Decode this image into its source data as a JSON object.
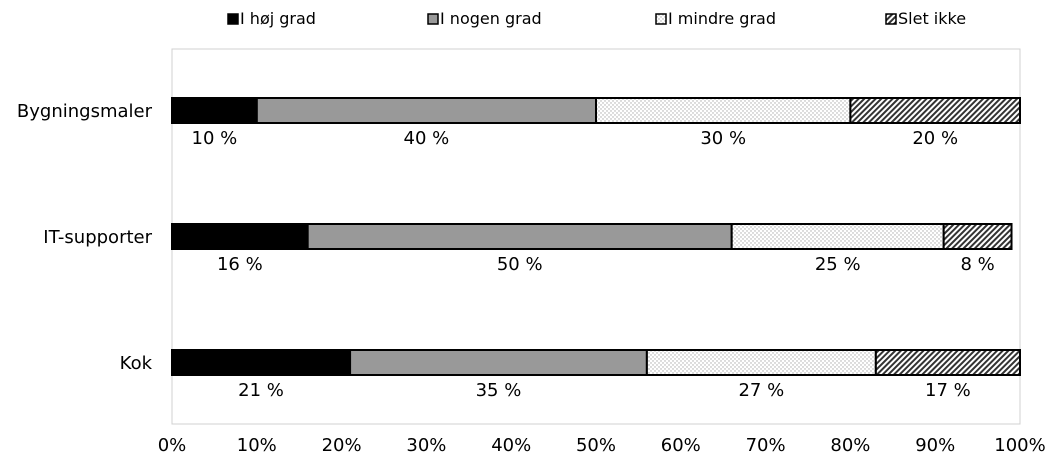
{
  "chart_data": {
    "type": "bar",
    "orientation": "horizontal",
    "stacked": true,
    "categories": [
      "Bygningsmaler",
      "IT-supporter",
      "Kok"
    ],
    "series": [
      {
        "name": "I høj grad",
        "values": [
          10,
          16,
          21
        ],
        "labels": [
          "10 %",
          "16 %",
          "21 %"
        ],
        "fill": "solid-black"
      },
      {
        "name": "I nogen grad",
        "values": [
          40,
          50,
          35
        ],
        "labels": [
          "40 %",
          "50 %",
          "35 %"
        ],
        "fill": "solid-gray"
      },
      {
        "name": "I mindre grad",
        "values": [
          30,
          25,
          27
        ],
        "labels": [
          "30 %",
          "25 %",
          "27 %"
        ],
        "fill": "dotted"
      },
      {
        "name": "Slet ikke",
        "values": [
          20,
          8,
          17
        ],
        "labels": [
          "20 %",
          "8 %",
          "17 %"
        ],
        "fill": "diagonal-hatch"
      }
    ],
    "x_ticks": [
      "0%",
      "10%",
      "20%",
      "30%",
      "40%",
      "50%",
      "60%",
      "70%",
      "80%",
      "90%",
      "100%"
    ],
    "xlim": [
      0,
      100
    ],
    "legend_position": "top",
    "grid": false,
    "colors": {
      "black": "#000000",
      "gray": "#999999",
      "dots": "#b3b3b3",
      "outline": "#000000"
    }
  }
}
